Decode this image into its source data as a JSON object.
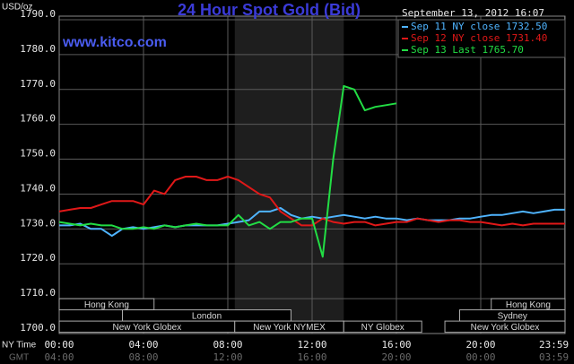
{
  "chart_data": {
    "type": "line",
    "title": "24 Hour Spot Gold (Bid)",
    "subtitle": "www.kitco.com",
    "y_label": "USD/oz",
    "timestamp": "September 13, 2012 16:07",
    "x_label": "NY Time",
    "x2_label": "GMT",
    "xlim": [
      0,
      24
    ],
    "xticks": [
      {
        "value": 0,
        "label": "00:00"
      },
      {
        "value": 4,
        "label": "04:00"
      },
      {
        "value": 8,
        "label": "08:00"
      },
      {
        "value": 12,
        "label": "12:00"
      },
      {
        "value": 16,
        "label": "16:00"
      },
      {
        "value": 20,
        "label": "20:00"
      },
      {
        "value": 23.983,
        "label": "23:59"
      }
    ],
    "x2_tick_labels": [
      "04:00",
      "08:00",
      "12:00",
      "16:00",
      "20:00",
      "00:00",
      "03:59"
    ],
    "ylim": [
      1700,
      1790
    ],
    "yticks": [
      {
        "value": 1700,
        "label": "1700.0"
      },
      {
        "value": 1710,
        "label": "1710.0"
      },
      {
        "value": 1720,
        "label": "1720.0"
      },
      {
        "value": 1730,
        "label": "1730.0"
      },
      {
        "value": 1740,
        "label": "1740.0"
      },
      {
        "value": 1750,
        "label": "1750.0"
      },
      {
        "value": 1760,
        "label": "1760.0"
      },
      {
        "value": 1770,
        "label": "1770.0"
      },
      {
        "value": 1780,
        "label": "1780.0"
      },
      {
        "value": 1790,
        "label": "1790.0"
      }
    ],
    "grid": true,
    "legend": "top-right",
    "highlight": {
      "start": 8.33,
      "end": 13.5,
      "color": "#1e1e1e"
    },
    "session_rows": [
      [
        {
          "label": "Hong Kong",
          "start": 0,
          "end": 4.5
        },
        {
          "label": "Hong Kong",
          "start": 20.5,
          "end": 24
        }
      ],
      [
        {
          "label": "London",
          "start": 3,
          "end": 11
        },
        {
          "label": "Sydney",
          "start": 19,
          "end": 24
        }
      ],
      [
        {
          "label": "New York Globex",
          "start": 0,
          "end": 8.33
        },
        {
          "label": "New York NYMEX",
          "start": 8.33,
          "end": 13.5
        },
        {
          "label": "NY Globex",
          "start": 13.5,
          "end": 17.2
        },
        {
          "label": "New York Globex",
          "start": 18.3,
          "end": 24
        }
      ]
    ],
    "x": [
      0,
      0.5,
      1,
      1.5,
      2,
      2.5,
      3,
      3.5,
      4,
      4.5,
      5,
      5.5,
      6,
      6.5,
      7,
      7.5,
      8,
      8.5,
      9,
      9.5,
      10,
      10.5,
      11,
      11.5,
      12,
      12.5,
      13,
      13.5,
      14,
      14.5,
      15,
      15.5,
      16,
      16.5,
      17,
      17.5,
      18,
      18.5,
      19,
      19.5,
      20,
      20.5,
      21,
      21.5,
      22,
      22.5,
      23,
      23.5,
      24
    ],
    "series": [
      {
        "name": "Sep 11 NY close 1732.50",
        "color": "#4fb4ff",
        "values": [
          1731,
          1731,
          1731.5,
          1730,
          1730,
          1728,
          1730,
          1730.5,
          1730,
          1730.5,
          1731,
          1730.5,
          1731,
          1731,
          1731,
          1731,
          1731.5,
          1732,
          1732.5,
          1735,
          1735,
          1736,
          1734,
          1733,
          1733.5,
          1733,
          1733.5,
          1734,
          1733.5,
          1733,
          1733.5,
          1733,
          1733,
          1732.5,
          1733,
          1732.5,
          1732.5,
          1732.5,
          1733,
          1733,
          1733.5,
          1734,
          1734,
          1734.5,
          1735,
          1734.5,
          1735,
          1735.5,
          1735.5
        ]
      },
      {
        "name": "Sep 12 NY close 1731.40",
        "color": "#e01818",
        "values": [
          1735,
          1735.5,
          1736,
          1736,
          1737,
          1738,
          1738,
          1738,
          1737,
          1741,
          1740,
          1744,
          1745,
          1745,
          1744,
          1744,
          1745,
          1744,
          1742,
          1740,
          1739,
          1735,
          1733,
          1731,
          1731,
          1733,
          1732,
          1731.5,
          1732,
          1732,
          1731,
          1731.5,
          1732,
          1732,
          1733,
          1732.5,
          1732,
          1732.5,
          1732.5,
          1732,
          1732,
          1731.5,
          1731,
          1731.5,
          1731,
          1731.5,
          1731.5,
          1731.5,
          1731.5
        ]
      },
      {
        "name": "Sep 13 Last 1765.70",
        "color": "#22dd44",
        "values": [
          1732,
          1731.5,
          1731,
          1731.5,
          1731,
          1731,
          1730,
          1730,
          1730.5,
          1730,
          1731,
          1730.5,
          1731,
          1731.5,
          1731,
          1731,
          1731,
          1734,
          1731,
          1732,
          1730,
          1732,
          1732,
          1733,
          1733,
          1722,
          1750,
          1771,
          1770,
          1764,
          1765,
          1765.5,
          1766,
          null,
          null,
          null,
          null,
          null,
          null,
          null,
          null,
          null,
          null,
          null,
          null,
          null,
          null,
          null,
          null
        ]
      }
    ]
  }
}
